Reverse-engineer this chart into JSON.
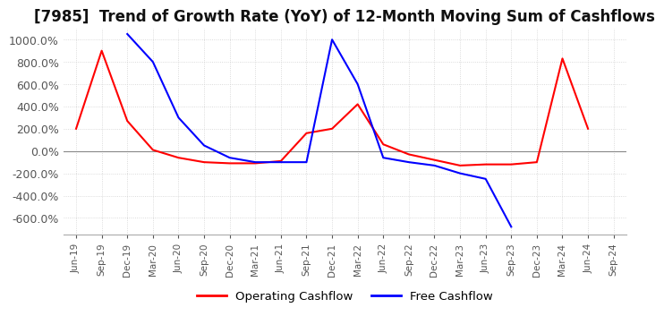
{
  "title": "[7985]  Trend of Growth Rate (YoY) of 12-Month Moving Sum of Cashflows",
  "title_fontsize": 12,
  "ylim": [
    -750,
    1100
  ],
  "yticks": [
    -600,
    -400,
    -200,
    0,
    200,
    400,
    600,
    800,
    1000
  ],
  "background_color": "#ffffff",
  "grid_color": "#d0d0d0",
  "operating_color": "#ff0000",
  "free_color": "#0000ff",
  "legend_labels": [
    "Operating Cashflow",
    "Free Cashflow"
  ],
  "x_labels": [
    "Jun-19",
    "Sep-19",
    "Dec-19",
    "Mar-20",
    "Jun-20",
    "Sep-20",
    "Dec-20",
    "Mar-21",
    "Jun-21",
    "Sep-21",
    "Dec-21",
    "Mar-22",
    "Jun-22",
    "Sep-22",
    "Dec-22",
    "Mar-23",
    "Jun-23",
    "Sep-23",
    "Dec-23",
    "Mar-24",
    "Jun-24",
    "Sep-24"
  ],
  "operating_cashflow": [
    200,
    900,
    270,
    10,
    -60,
    -100,
    -110,
    -110,
    -90,
    160,
    200,
    420,
    60,
    -30,
    -80,
    -130,
    -120,
    -120,
    -100,
    830,
    200,
    null
  ],
  "free_cashflow": [
    null,
    null,
    1050,
    800,
    300,
    50,
    -60,
    -100,
    -100,
    -100,
    1000,
    600,
    -60,
    -100,
    -130,
    -200,
    -250,
    -680,
    null,
    null,
    null,
    null
  ]
}
